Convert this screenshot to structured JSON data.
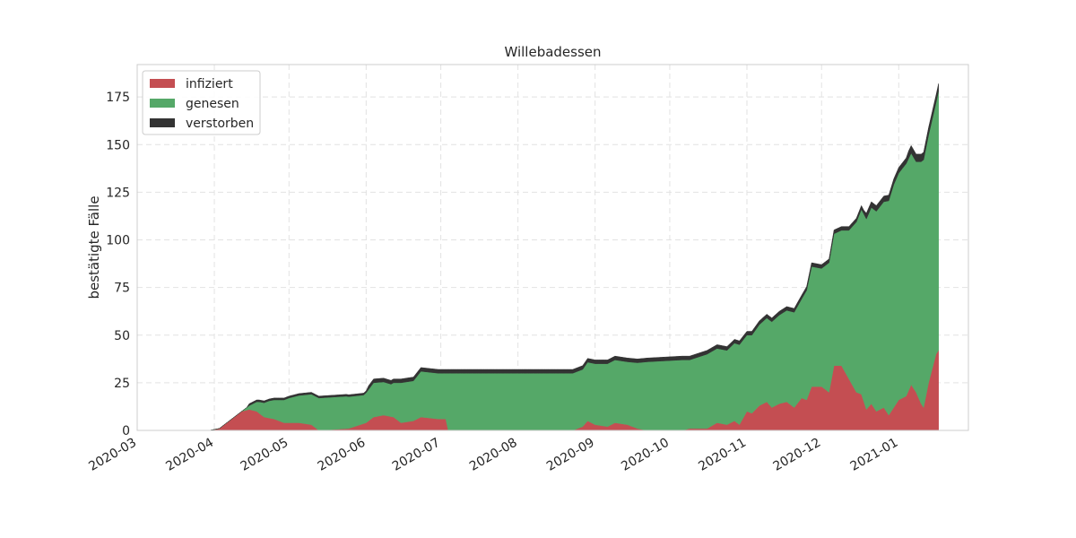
{
  "chart_data": {
    "type": "area",
    "title": "Willebadessen",
    "xlabel": "",
    "ylabel": "bestätigte Fälle",
    "xlim": [
      "2020-03-01",
      "2021-01-29"
    ],
    "ylim": [
      0,
      192
    ],
    "yticks": [
      0,
      25,
      50,
      75,
      100,
      125,
      150,
      175
    ],
    "xticks": [
      "2020-03",
      "2020-04",
      "2020-05",
      "2020-06",
      "2020-07",
      "2020-08",
      "2020-09",
      "2020-10",
      "2020-11",
      "2020-12",
      "2021-01"
    ],
    "grid": true,
    "legend_position": "top-left",
    "stacked": true,
    "series": [
      {
        "name": "infiziert",
        "color": "#c44e52",
        "points": [
          [
            "2020-03-30",
            0
          ],
          [
            "2020-04-03",
            1
          ],
          [
            "2020-04-06",
            4
          ],
          [
            "2020-04-09",
            7
          ],
          [
            "2020-04-12",
            10
          ],
          [
            "2020-04-15",
            11
          ],
          [
            "2020-04-18",
            10
          ],
          [
            "2020-04-21",
            7
          ],
          [
            "2020-04-25",
            6
          ],
          [
            "2020-04-29",
            4
          ],
          [
            "2020-05-05",
            4
          ],
          [
            "2020-05-10",
            3
          ],
          [
            "2020-05-13",
            0
          ],
          [
            "2020-05-25",
            1
          ],
          [
            "2020-06-01",
            4
          ],
          [
            "2020-06-04",
            7
          ],
          [
            "2020-06-08",
            8
          ],
          [
            "2020-06-12",
            7
          ],
          [
            "2020-06-15",
            4
          ],
          [
            "2020-06-20",
            5
          ],
          [
            "2020-06-23",
            7
          ],
          [
            "2020-06-30",
            6
          ],
          [
            "2020-07-03",
            6
          ],
          [
            "2020-07-04",
            0
          ],
          [
            "2020-08-23",
            0
          ],
          [
            "2020-08-27",
            2
          ],
          [
            "2020-08-29",
            5
          ],
          [
            "2020-09-01",
            3
          ],
          [
            "2020-09-06",
            2
          ],
          [
            "2020-09-09",
            4
          ],
          [
            "2020-09-14",
            3
          ],
          [
            "2020-09-18",
            1
          ],
          [
            "2020-09-22",
            0
          ],
          [
            "2020-10-06",
            0
          ],
          [
            "2020-10-09",
            1
          ],
          [
            "2020-10-16",
            1
          ],
          [
            "2020-10-20",
            4
          ],
          [
            "2020-10-24",
            3
          ],
          [
            "2020-10-27",
            5
          ],
          [
            "2020-10-29",
            3
          ],
          [
            "2020-11-01",
            10
          ],
          [
            "2020-11-03",
            9
          ],
          [
            "2020-11-06",
            13
          ],
          [
            "2020-11-09",
            15
          ],
          [
            "2020-11-11",
            12
          ],
          [
            "2020-11-14",
            14
          ],
          [
            "2020-11-17",
            15
          ],
          [
            "2020-11-20",
            12
          ],
          [
            "2020-11-23",
            17
          ],
          [
            "2020-11-25",
            16
          ],
          [
            "2020-11-27",
            23
          ],
          [
            "2020-12-01",
            23
          ],
          [
            "2020-12-04",
            20
          ],
          [
            "2020-12-06",
            34
          ],
          [
            "2020-12-09",
            34
          ],
          [
            "2020-12-12",
            27
          ],
          [
            "2020-12-15",
            20
          ],
          [
            "2020-12-17",
            19
          ],
          [
            "2020-12-19",
            11
          ],
          [
            "2020-12-21",
            14
          ],
          [
            "2020-12-23",
            10
          ],
          [
            "2020-12-26",
            12
          ],
          [
            "2020-12-28",
            8
          ],
          [
            "2020-12-30",
            12
          ],
          [
            "2021-01-01",
            16
          ],
          [
            "2021-01-04",
            18
          ],
          [
            "2021-01-06",
            24
          ],
          [
            "2021-01-08",
            20
          ],
          [
            "2021-01-10",
            14
          ],
          [
            "2021-01-11",
            12
          ],
          [
            "2021-01-13",
            25
          ],
          [
            "2021-01-16",
            40
          ],
          [
            "2021-01-17",
            42
          ]
        ]
      },
      {
        "name": "genesen",
        "color": "#55a868",
        "points": [
          [
            "2020-03-30",
            0
          ],
          [
            "2020-04-12",
            0
          ],
          [
            "2020-04-15",
            2
          ],
          [
            "2020-04-19",
            6
          ],
          [
            "2020-04-23",
            9
          ],
          [
            "2020-04-27",
            11
          ],
          [
            "2020-05-01",
            13
          ],
          [
            "2020-05-13",
            17
          ],
          [
            "2020-05-24",
            17
          ],
          [
            "2020-05-31",
            15
          ],
          [
            "2020-06-04",
            18
          ],
          [
            "2020-06-11",
            17
          ],
          [
            "2020-06-15",
            21
          ],
          [
            "2020-06-20",
            21
          ],
          [
            "2020-06-23",
            24
          ],
          [
            "2020-07-03",
            24
          ],
          [
            "2020-07-04",
            30
          ],
          [
            "2020-08-23",
            30
          ],
          [
            "2020-08-27",
            30
          ],
          [
            "2020-09-01",
            32
          ],
          [
            "2020-09-06",
            33
          ],
          [
            "2020-09-14",
            33
          ],
          [
            "2020-09-22",
            36
          ],
          [
            "2020-10-06",
            37
          ],
          [
            "2020-10-09",
            36
          ],
          [
            "2020-10-16",
            39
          ],
          [
            "2020-10-24",
            39
          ],
          [
            "2020-10-29",
            42
          ],
          [
            "2020-11-01",
            40
          ],
          [
            "2020-11-09",
            44
          ],
          [
            "2020-11-17",
            48
          ],
          [
            "2020-11-23",
            52
          ],
          [
            "2020-11-27",
            63
          ],
          [
            "2020-12-01",
            62
          ],
          [
            "2020-12-04",
            68
          ],
          [
            "2020-12-09",
            71
          ],
          [
            "2020-12-12",
            78
          ],
          [
            "2020-12-17",
            97
          ],
          [
            "2020-12-21",
            103
          ],
          [
            "2020-12-26",
            108
          ],
          [
            "2020-12-30",
            117
          ],
          [
            "2021-01-04",
            122
          ],
          [
            "2021-01-08",
            121
          ],
          [
            "2021-01-11",
            130
          ],
          [
            "2021-01-13",
            130
          ],
          [
            "2021-01-16",
            132
          ],
          [
            "2021-01-17",
            136
          ]
        ]
      },
      {
        "name": "verstorben",
        "color": "#333333",
        "points": [
          [
            "2020-03-30",
            0
          ],
          [
            "2020-04-14",
            0
          ],
          [
            "2020-04-15",
            1
          ],
          [
            "2020-06-01",
            1
          ],
          [
            "2020-06-02",
            2
          ],
          [
            "2020-12-18",
            2
          ],
          [
            "2020-12-19",
            3
          ],
          [
            "2021-01-04",
            3
          ],
          [
            "2021-01-05",
            4
          ],
          [
            "2021-01-17",
            4
          ]
        ]
      }
    ]
  }
}
